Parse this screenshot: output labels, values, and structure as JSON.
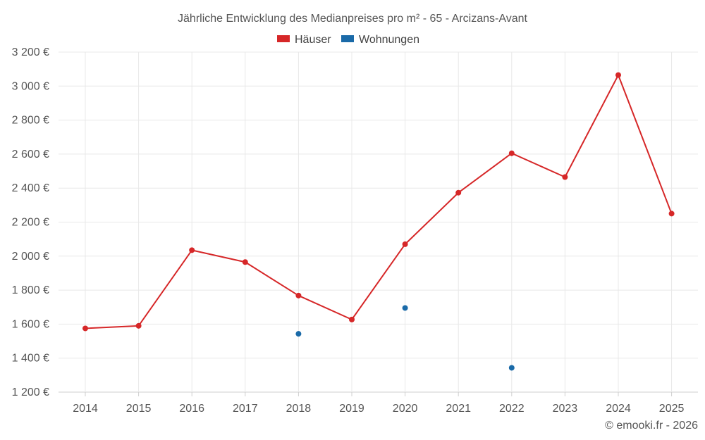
{
  "chart_data": {
    "type": "line",
    "title": "Jährliche Entwicklung des Medianpreises pro m² - 65 - Arcizans-Avant",
    "categories": [
      "2014",
      "2015",
      "2016",
      "2017",
      "2018",
      "2019",
      "2020",
      "2021",
      "2022",
      "2023",
      "2024",
      "2025"
    ],
    "series": [
      {
        "name": "Häuser",
        "color": "#d62728",
        "style": "line",
        "values": [
          1575,
          1590,
          2035,
          1965,
          1768,
          1627,
          2070,
          2373,
          2605,
          2465,
          3065,
          2250
        ]
      },
      {
        "name": "Wohnungen",
        "color": "#1a6aa8",
        "style": "points",
        "values": [
          null,
          null,
          null,
          null,
          1543,
          null,
          1695,
          null,
          1343,
          null,
          null,
          null
        ]
      }
    ],
    "ylim": [
      1200,
      3200
    ],
    "y_ticks": [
      1200,
      1400,
      1600,
      1800,
      2000,
      2200,
      2400,
      2600,
      2800,
      3000,
      3200
    ],
    "y_tick_labels": [
      "1 200 €",
      "1 400 €",
      "1 600 €",
      "1 800 €",
      "2 000 €",
      "2 200 €",
      "2 400 €",
      "2 600 €",
      "2 800 €",
      "3 000 €",
      "3 200 €"
    ],
    "xlabel": "",
    "ylabel": "",
    "grid": true,
    "legend_position": "top-center"
  },
  "copyright": "© emooki.fr - 2026"
}
